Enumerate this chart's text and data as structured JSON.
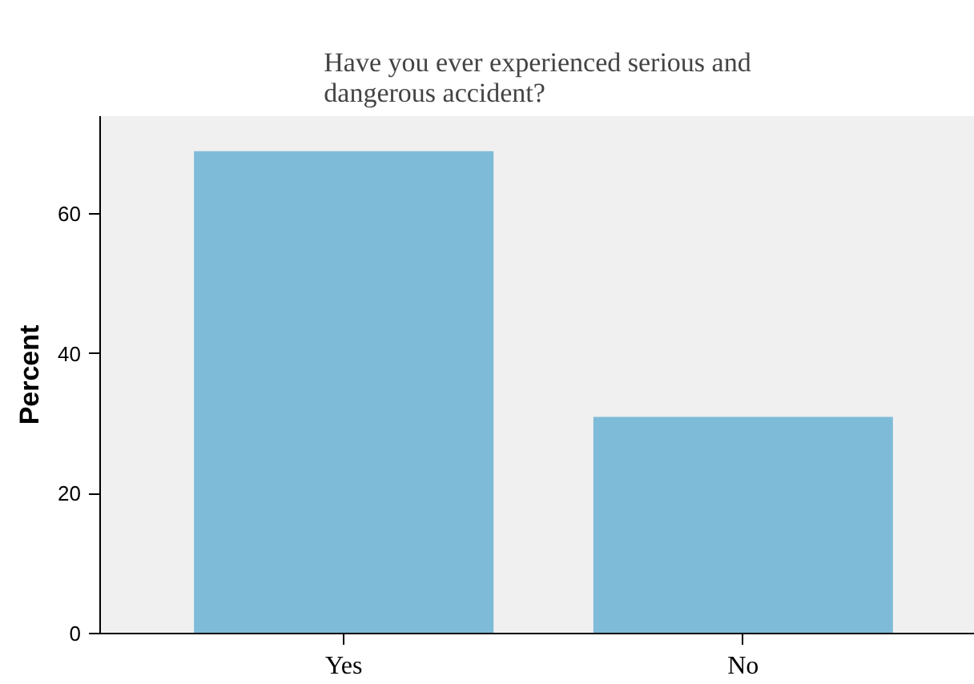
{
  "chart_data": {
    "type": "bar",
    "title": "Have you ever experienced serious and dangerous accident?",
    "ylabel": "Percent",
    "categories": [
      "Yes",
      "No"
    ],
    "values": [
      69,
      31
    ],
    "color": "#7ebbd8",
    "ylim": [
      0,
      74
    ],
    "yticks": [
      0,
      20,
      40,
      60
    ],
    "grid": false
  }
}
